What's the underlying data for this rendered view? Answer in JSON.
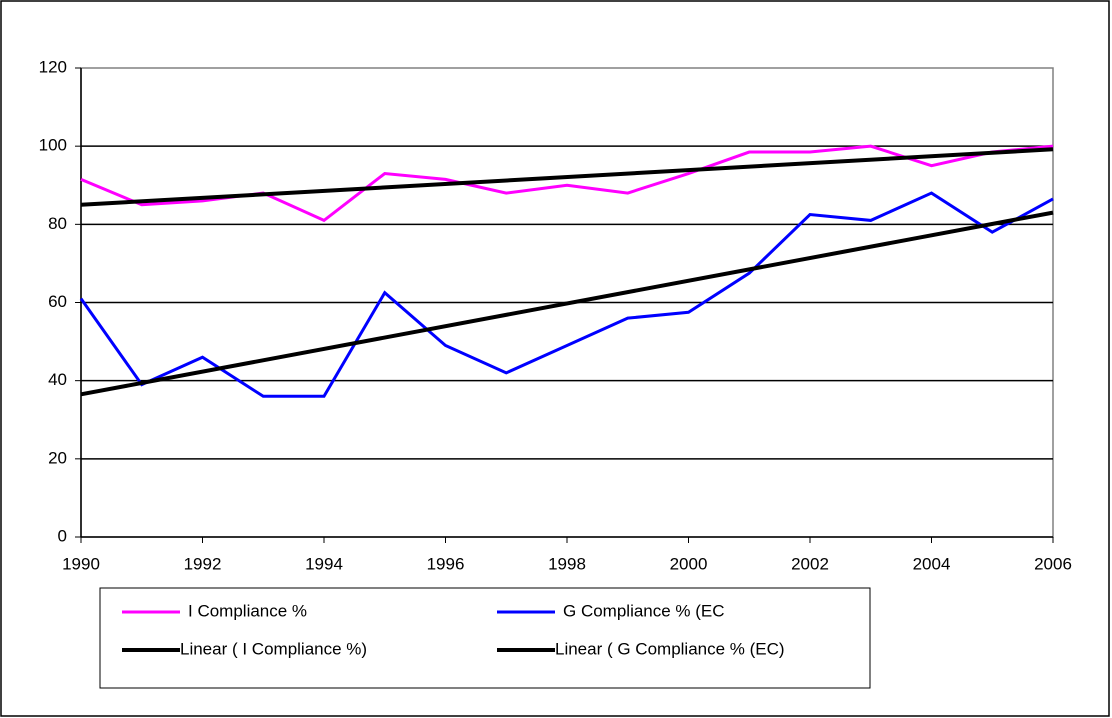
{
  "chart_data": {
    "type": "line",
    "x": [
      1990,
      1991,
      1992,
      1993,
      1994,
      1995,
      1996,
      1997,
      1998,
      1999,
      2000,
      2001,
      2002,
      2003,
      2004,
      2005,
      2006
    ],
    "series": [
      {
        "name": "I Compliance %",
        "color": "#ff00ff",
        "values": [
          91.5,
          85,
          86,
          88,
          81,
          93,
          91.5,
          88,
          90,
          88,
          93,
          98.5,
          98.5,
          100,
          95,
          98.5,
          100
        ]
      },
      {
        "name": "G Compliance % (EC",
        "color": "#0000ff",
        "values": [
          61,
          39,
          46,
          36,
          36,
          62.5,
          49,
          42,
          49,
          56,
          57.5,
          67.5,
          82.5,
          81,
          88,
          78,
          86.5
        ]
      },
      {
        "name": "Linear ( I Compliance %)",
        "color": "#000000",
        "x": [
          1990,
          2006
        ],
        "values": [
          85,
          99.2
        ]
      },
      {
        "name": "Linear ( G Compliance % (EC)",
        "color": "#000000",
        "x": [
          1990,
          2006
        ],
        "values": [
          36.5,
          83
        ]
      }
    ],
    "xlim": [
      1990,
      2006
    ],
    "xticks": [
      1990,
      1992,
      1994,
      1996,
      1998,
      2000,
      2002,
      2004,
      2006
    ],
    "ylim": [
      0,
      120
    ],
    "yticks": [
      0,
      20,
      40,
      60,
      80,
      100,
      120
    ],
    "grid": true
  }
}
